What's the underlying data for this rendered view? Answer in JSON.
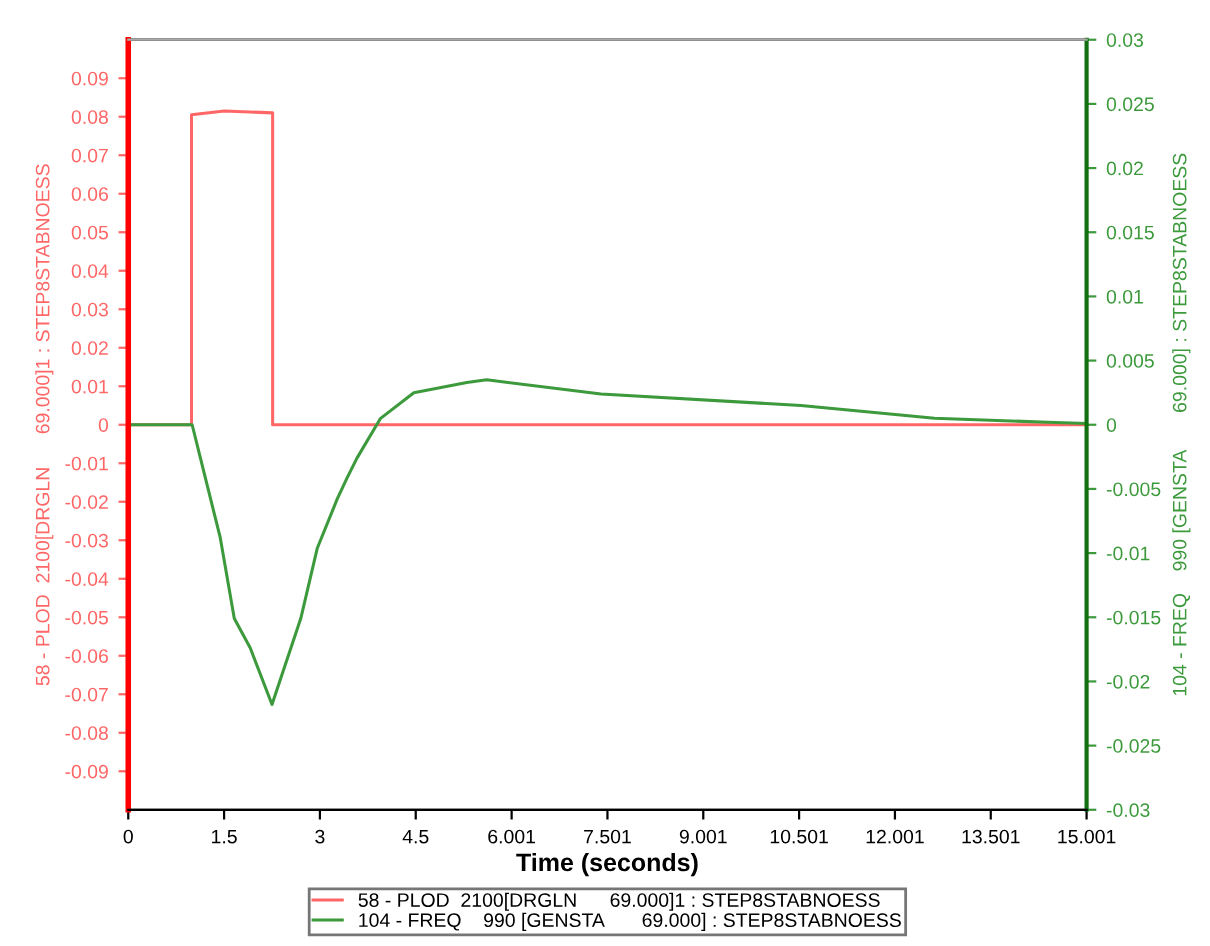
{
  "chart_data": {
    "type": "line",
    "xlabel": "Time (seconds)",
    "ylabel": "58 - PLOD  2100[DRGLN      69.000]1 : STEP8STABNOESS",
    "y2label": "104 - FREQ    990 [GENSTA       69.000] : STEP8STABNOESS",
    "series": [
      {
        "name": "58 - PLOD  2100[DRGLN      69.000]1 : STEP8STABNOESS",
        "color": "#ff6666",
        "x": [
          0,
          0.99,
          0.99,
          1.5,
          2.26,
          2.26,
          15.001
        ],
        "values": [
          0,
          0,
          0.0805,
          0.0815,
          0.081,
          0,
          0
        ]
      },
      {
        "name": "104 - FREQ    990 [GENSTA       69.000] : STEP8STABNOESS",
        "color": "#3c9a3c",
        "axis": "y2",
        "x": [
          0,
          1.0,
          1.13,
          1.44,
          1.66,
          1.91,
          2.25,
          2.7,
          2.96,
          3.27,
          3.42,
          3.58,
          3.95,
          4.47,
          5.3,
          5.61,
          7.4,
          10.53,
          12.62,
          14.39,
          15.001
        ],
        "values": [
          0,
          0,
          -0.0026,
          -0.0088,
          -0.0151,
          -0.0174,
          -0.0218,
          -0.0151,
          -0.0096,
          -0.0058,
          -0.0042,
          -0.0026,
          0.0005,
          0.0025,
          0.0033,
          0.0035,
          0.0024,
          0.0015,
          0.0005,
          0.0002,
          0.0001
        ]
      }
    ],
    "xlim": [
      0,
      15.001
    ],
    "xticks": [
      0,
      1.5,
      3,
      4.5,
      6.001,
      7.501,
      9.001,
      10.501,
      12.001,
      13.501,
      15.001
    ],
    "ylim": [
      -0.1,
      0.1
    ],
    "yticks": [
      -0.09,
      -0.08,
      -0.07,
      -0.06,
      -0.05,
      -0.04,
      -0.03,
      -0.02,
      -0.01,
      0,
      0.01,
      0.02,
      0.03,
      0.04,
      0.05,
      0.06,
      0.07,
      0.08,
      0.09
    ],
    "y2lim": [
      -0.03,
      0.03
    ],
    "y2ticks": [
      -0.03,
      -0.025,
      -0.02,
      -0.015,
      -0.01,
      -0.005,
      0,
      0.005,
      0.01,
      0.015,
      0.02,
      0.025,
      0.03
    ],
    "grid": false,
    "legend": "bottom",
    "marker": "none",
    "line_style": "solid"
  }
}
